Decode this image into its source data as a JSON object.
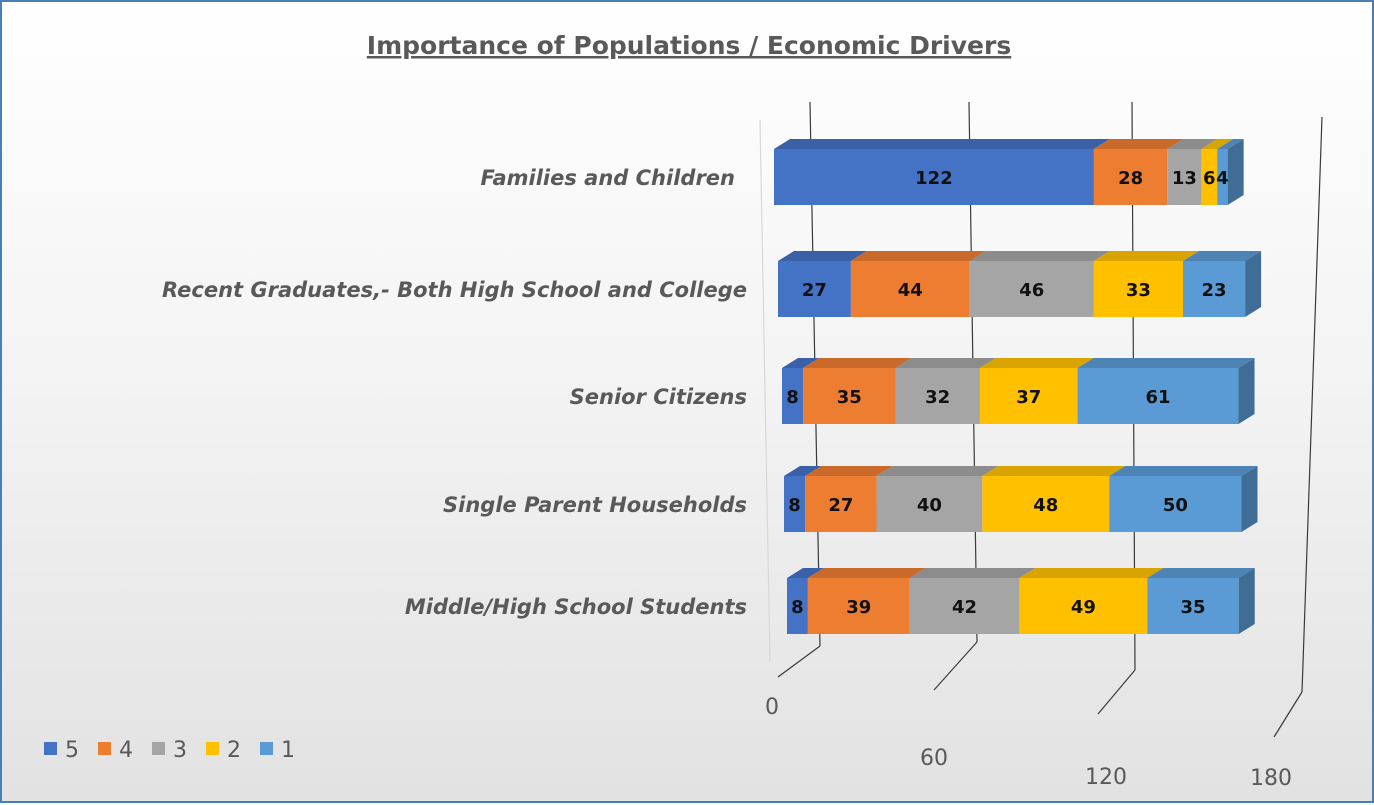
{
  "chart_data": {
    "type": "bar",
    "orientation": "horizontal",
    "stacked": true,
    "style": "3d",
    "title": "Importance of Populations / Economic Drivers",
    "categories": [
      "Families and Children",
      "Recent Graduates,- Both High School and College",
      "Senior Citizens",
      "Single Parent Households",
      "Middle/High School Students"
    ],
    "series": [
      {
        "name": "5",
        "color": "#4472c4",
        "values": [
          122,
          27,
          8,
          8,
          8
        ]
      },
      {
        "name": "4",
        "color": "#ed7d31",
        "values": [
          28,
          44,
          35,
          27,
          39
        ]
      },
      {
        "name": "3",
        "color": "#a5a5a5",
        "values": [
          13,
          46,
          32,
          40,
          42
        ]
      },
      {
        "name": "2",
        "color": "#ffc000",
        "values": [
          6,
          33,
          37,
          48,
          49
        ]
      },
      {
        "name": "1",
        "color": "#5b9bd5",
        "values": [
          4,
          23,
          61,
          50,
          35
        ]
      }
    ],
    "xticks": [
      "0",
      "60",
      "120",
      "180"
    ],
    "xlim": [
      0,
      180
    ],
    "grid": true,
    "legend_position": "bottom-left"
  }
}
